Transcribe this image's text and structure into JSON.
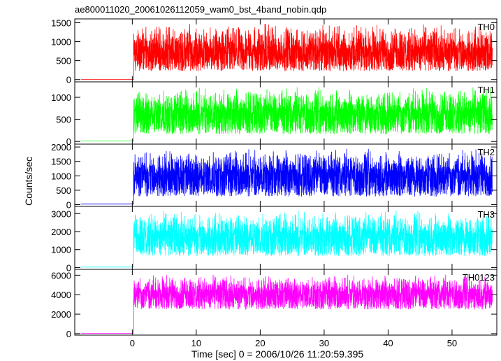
{
  "chart_data": {
    "type": "line",
    "title": "ae800011020_20061026112059_wam0_bst_4band_nobin.qdp",
    "xlabel": "Time [sec] 0 = 2006/10/26 11:20:59.395",
    "ylabel": "Counts/sec",
    "xlim": [
      -9,
      57
    ],
    "x_ticks": [
      0,
      10,
      20,
      30,
      40,
      50
    ],
    "grid": false,
    "panels": [
      {
        "name": "TH0",
        "color": "#ff0000",
        "ylim": [
          -60,
          1600
        ],
        "y_ticks": [
          0,
          500,
          1000,
          1500
        ],
        "pre_start": -8,
        "pre_level": 5,
        "trigger": 0.2,
        "data_end": 56.3,
        "mean": 750,
        "noise_low": 130,
        "noise_high": 1550
      },
      {
        "name": "TH1",
        "color": "#00ff00",
        "ylim": [
          -60,
          1350
        ],
        "y_ticks": [
          0,
          500,
          1000
        ],
        "pre_start": -8,
        "pre_level": 10,
        "trigger": 0.2,
        "data_end": 56.3,
        "mean": 650,
        "noise_low": 80,
        "noise_high": 1300
      },
      {
        "name": "TH2",
        "color": "#0000ff",
        "ylim": [
          -60,
          2100
        ],
        "y_ticks": [
          0,
          500,
          1000,
          1500,
          2000
        ],
        "pre_start": -8,
        "pre_level": 20,
        "trigger": 0.2,
        "data_end": 56.3,
        "mean": 1050,
        "noise_low": 150,
        "noise_high": 2050
      },
      {
        "name": "TH3",
        "color": "#00ffff",
        "ylim": [
          -100,
          3400
        ],
        "y_ticks": [
          0,
          1000,
          2000,
          3000
        ],
        "pre_start": -8,
        "pre_level": 30,
        "trigger": 0.2,
        "data_end": 56.3,
        "mean": 1750,
        "noise_low": 450,
        "noise_high": 3350
      },
      {
        "name": "TH0123",
        "color": "#ff00ff",
        "ylim": [
          -150,
          6600
        ],
        "y_ticks": [
          0,
          2000,
          4000,
          6000
        ],
        "pre_start": -8,
        "pre_level": 40,
        "trigger": 0.2,
        "data_end": 56.3,
        "mean": 4150,
        "noise_low": 2200,
        "noise_high": 6300
      }
    ]
  }
}
